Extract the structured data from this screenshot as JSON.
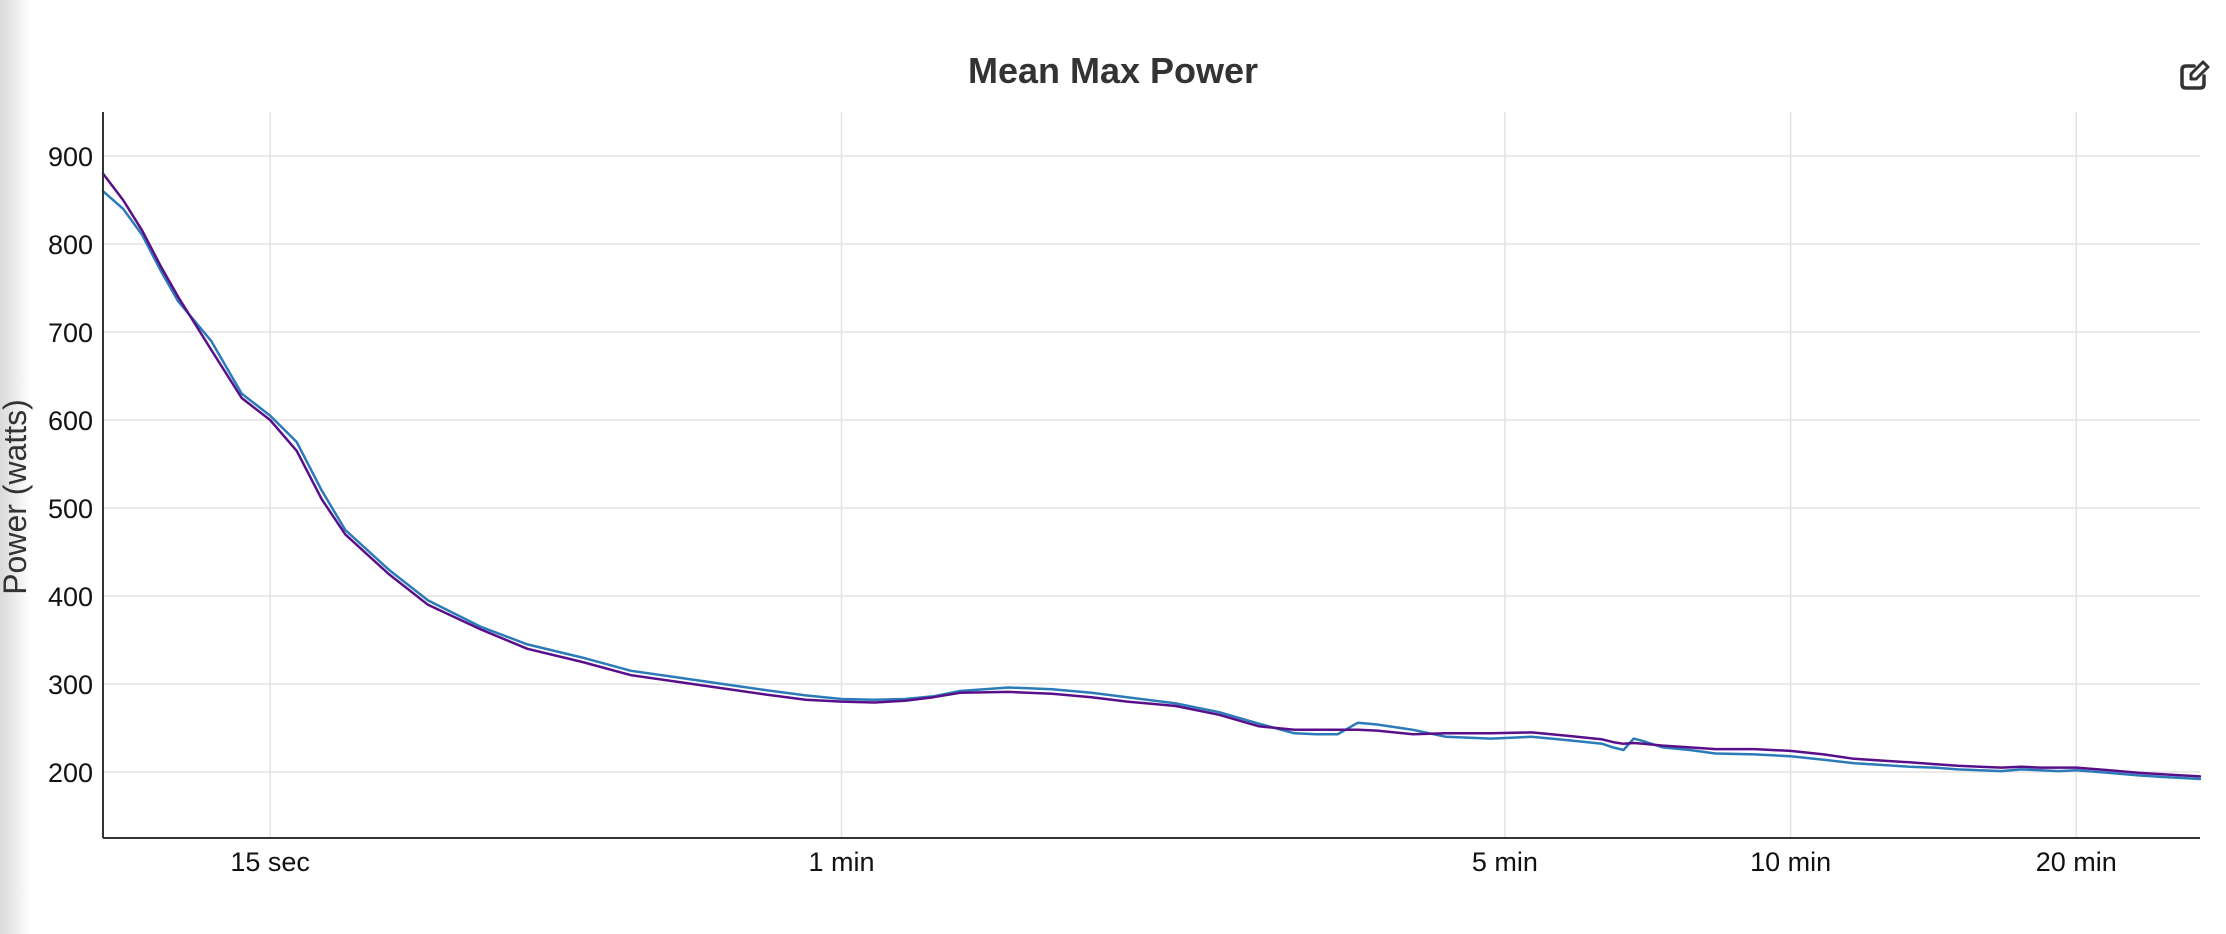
{
  "header": {
    "title": "Mean Max Power",
    "edit_icon": "edit-icon"
  },
  "chart_data": {
    "type": "line",
    "title": "Mean Max Power",
    "xlabel": "",
    "ylabel": "Power (watts)",
    "x_scale": "log",
    "x_unit": "seconds",
    "xlim": [
      10,
      1620
    ],
    "ylim": [
      125,
      950
    ],
    "grid": true,
    "x_ticks": [
      {
        "value": 15,
        "label": "15 sec"
      },
      {
        "value": 60,
        "label": "1 min"
      },
      {
        "value": 300,
        "label": "5 min"
      },
      {
        "value": 600,
        "label": "10 min"
      },
      {
        "value": 1200,
        "label": "20 min"
      }
    ],
    "y_ticks": [
      200,
      300,
      400,
      500,
      600,
      700,
      800,
      900
    ],
    "colors": [
      "#2b7bb9",
      "#5a0f8a"
    ],
    "series": [
      {
        "color": "#2b7bb9",
        "x": [
          10,
          10.5,
          11,
          11.5,
          12,
          13,
          14,
          15,
          16,
          17,
          18,
          20,
          22,
          25,
          28,
          32,
          36,
          40,
          45,
          50,
          55,
          60,
          65,
          70,
          75,
          80,
          90,
          100,
          110,
          120,
          135,
          150,
          165,
          180,
          190,
          200,
          210,
          220,
          240,
          260,
          290,
          320,
          350,
          380,
          390,
          400,
          410,
          420,
          440,
          470,
          500,
          550,
          600,
          650,
          700,
          750,
          800,
          850,
          900,
          950,
          1000,
          1050,
          1100,
          1150,
          1200,
          1300,
          1400,
          1500,
          1620
        ],
        "y": [
          860,
          840,
          810,
          770,
          735,
          690,
          630,
          605,
          575,
          520,
          475,
          430,
          395,
          365,
          345,
          330,
          315,
          308,
          300,
          293,
          287,
          283,
          282,
          283,
          286,
          292,
          296,
          294,
          290,
          285,
          278,
          268,
          255,
          244,
          243,
          243,
          256,
          254,
          248,
          240,
          238,
          240,
          236,
          232,
          228,
          225,
          238,
          235,
          228,
          225,
          221,
          220,
          218,
          214,
          210,
          208,
          206,
          205,
          203,
          202,
          201,
          203,
          202,
          201,
          202,
          199,
          196,
          194,
          192
        ]
      },
      {
        "color": "#5a0f8a",
        "x": [
          10,
          10.5,
          11,
          11.5,
          12,
          13,
          14,
          15,
          16,
          17,
          18,
          20,
          22,
          25,
          28,
          32,
          36,
          40,
          45,
          50,
          55,
          60,
          65,
          70,
          75,
          80,
          90,
          100,
          110,
          120,
          135,
          150,
          165,
          180,
          190,
          200,
          210,
          220,
          240,
          260,
          290,
          320,
          350,
          380,
          390,
          400,
          410,
          420,
          440,
          470,
          500,
          550,
          600,
          650,
          700,
          750,
          800,
          850,
          900,
          950,
          1000,
          1050,
          1100,
          1150,
          1200,
          1300,
          1400,
          1500,
          1620
        ],
        "y": [
          880,
          850,
          815,
          775,
          740,
          680,
          625,
          600,
          565,
          510,
          470,
          425,
          390,
          362,
          340,
          325,
          310,
          303,
          295,
          288,
          282,
          280,
          279,
          281,
          285,
          290,
          291,
          289,
          285,
          280,
          275,
          265,
          252,
          248,
          248,
          248,
          248,
          247,
          243,
          244,
          244,
          245,
          241,
          237,
          234,
          232,
          233,
          232,
          230,
          228,
          226,
          226,
          224,
          220,
          215,
          213,
          211,
          209,
          207,
          206,
          205,
          206,
          205,
          205,
          205,
          202,
          199,
          197,
          195
        ]
      }
    ]
  }
}
